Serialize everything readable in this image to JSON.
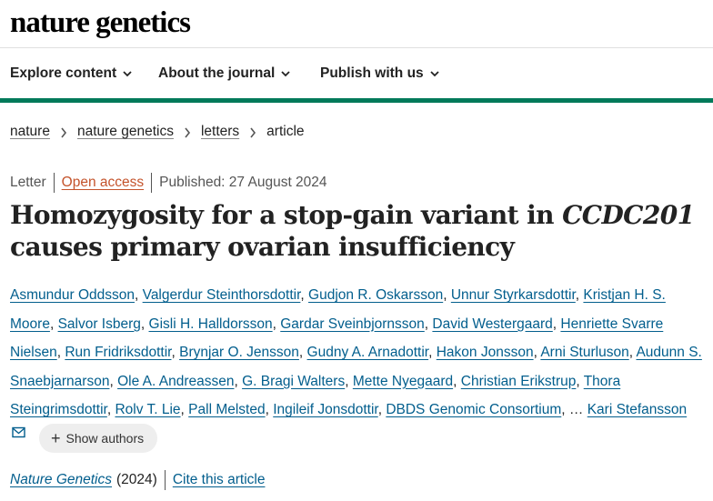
{
  "logo": "nature genetics",
  "nav": [
    {
      "label": "Explore content"
    },
    {
      "label": "About the journal"
    },
    {
      "label": "Publish with us"
    }
  ],
  "breadcrumb": [
    "nature",
    "nature genetics",
    "letters",
    "article"
  ],
  "meta": {
    "type": "Letter",
    "access": "Open access",
    "published": "Published: 27 August 2024"
  },
  "title": {
    "part1": "Homozygosity for a stop-gain variant in ",
    "gene": "CCDC201",
    "part2": " causes primary ovarian insufficiency"
  },
  "authors": [
    "Asmundur Oddsson",
    "Valgerdur Steinthorsdottir",
    "Gudjon R. Oskarsson",
    "Unnur Styrkarsdottir",
    "Kristjan H. S. Moore",
    "Salvor Isberg",
    "Gisli H. Halldorsson",
    "Gardar Sveinbjornsson",
    "David Westergaard",
    "Henriette Svarre Nielsen",
    "Run Fridriksdottir",
    "Brynjar O. Jensson",
    "Gudny A. Arnadottir",
    "Hakon Jonsson",
    "Arni Sturluson",
    "Audunn S. Snaebjarnarson",
    "Ole A. Andreassen",
    "G. Bragi Walters",
    "Mette Nyegaard",
    "Christian Erikstrup",
    "Thora Steingrimsdottir",
    "Rolv T. Lie",
    "Pall Melsted",
    "Ingileif Jonsdottir",
    "DBDS Genomic Consortium"
  ],
  "ellipsis": "…",
  "last_author": "Kari Stefansson",
  "show_authors": "Show authors",
  "citation": {
    "journal": "Nature Genetics",
    "year": "(2024)",
    "cite_label": "Cite this article"
  },
  "colors": {
    "accent": "#007a5a",
    "link": "#025e8d",
    "open_access": "#c4532b"
  },
  "icons": {
    "nav_chevron": "chevron-down-icon",
    "breadcrumb_sep": "chevron-right-icon",
    "mail": "mail-icon",
    "plus": "plus-icon"
  }
}
